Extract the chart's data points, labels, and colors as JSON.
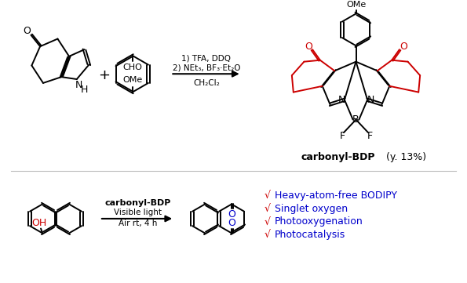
{
  "bg_color": "#ffffff",
  "reaction1_conditions": [
    "1) TFA, DDQ",
    "2) NEt₃, BF₃·Et₂O",
    "CH₂Cl₂"
  ],
  "product_label_bold": "carbonyl-BDP",
  "product_label_normal": " (y. 13%)",
  "reaction2_catalyst": "carbonyl-BDP",
  "reaction2_conditions": [
    "Visible light",
    "Air rt, 4 h"
  ],
  "checklist": [
    {
      "text": "Heavy-atom-free BODIPY"
    },
    {
      "text": "Singlet oxygen"
    },
    {
      "text": "Photooxygenation"
    },
    {
      "text": "Photocatalysis"
    }
  ],
  "check_color": "#cc0000",
  "text_color": "#0000cc",
  "black": "#000000",
  "red": "#cc0000",
  "blue": "#0000cc"
}
